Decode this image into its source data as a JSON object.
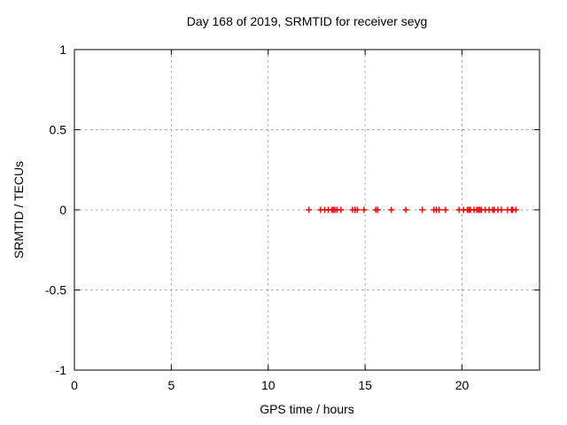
{
  "chart_data": {
    "type": "scatter",
    "title": "Day 168 of 2019, SRMTID for receiver seyg",
    "xlabel": "GPS time / hours",
    "ylabel": "SRMTID / TECUs",
    "xlim": [
      0,
      24
    ],
    "ylim": [
      -1,
      1
    ],
    "xticks": [
      0,
      5,
      10,
      15,
      20
    ],
    "xtick_labels": [
      "0",
      "5",
      "10",
      "15",
      "20"
    ],
    "yticks": [
      1,
      0.5,
      0,
      -0.5,
      -1
    ],
    "ytick_labels": [
      "1",
      "0.5",
      "0",
      "-0.5",
      "-1"
    ],
    "grid": true,
    "legend": "none",
    "marker": "plus",
    "marker_color": "#ff0000",
    "series": [
      {
        "name": "SRMTID",
        "x": [
          12.1,
          12.7,
          12.92,
          13.1,
          13.28,
          13.36,
          13.44,
          13.55,
          13.75,
          14.35,
          14.48,
          14.6,
          14.95,
          15.55,
          15.65,
          16.35,
          17.1,
          17.95,
          18.55,
          18.68,
          18.82,
          19.15,
          19.85,
          20.08,
          20.28,
          20.36,
          20.44,
          20.62,
          20.76,
          20.84,
          20.92,
          21.0,
          21.2,
          21.4,
          21.58,
          21.66,
          21.85,
          22.03,
          22.35,
          22.55,
          22.62,
          22.78
        ],
        "y": [
          0,
          0,
          0,
          0,
          0,
          0,
          0,
          0,
          0,
          0,
          0,
          0,
          0,
          0,
          0,
          0,
          0,
          0,
          0,
          0,
          0,
          0,
          0,
          0,
          0,
          0,
          0,
          0,
          0,
          0,
          0,
          0,
          0,
          0,
          0,
          0,
          0,
          0,
          0,
          0,
          0,
          0
        ]
      }
    ]
  },
  "colors": {
    "background": "#ffffff",
    "axis": "#000000",
    "grid": "#a6a6a6",
    "marker": "#ff0000"
  }
}
